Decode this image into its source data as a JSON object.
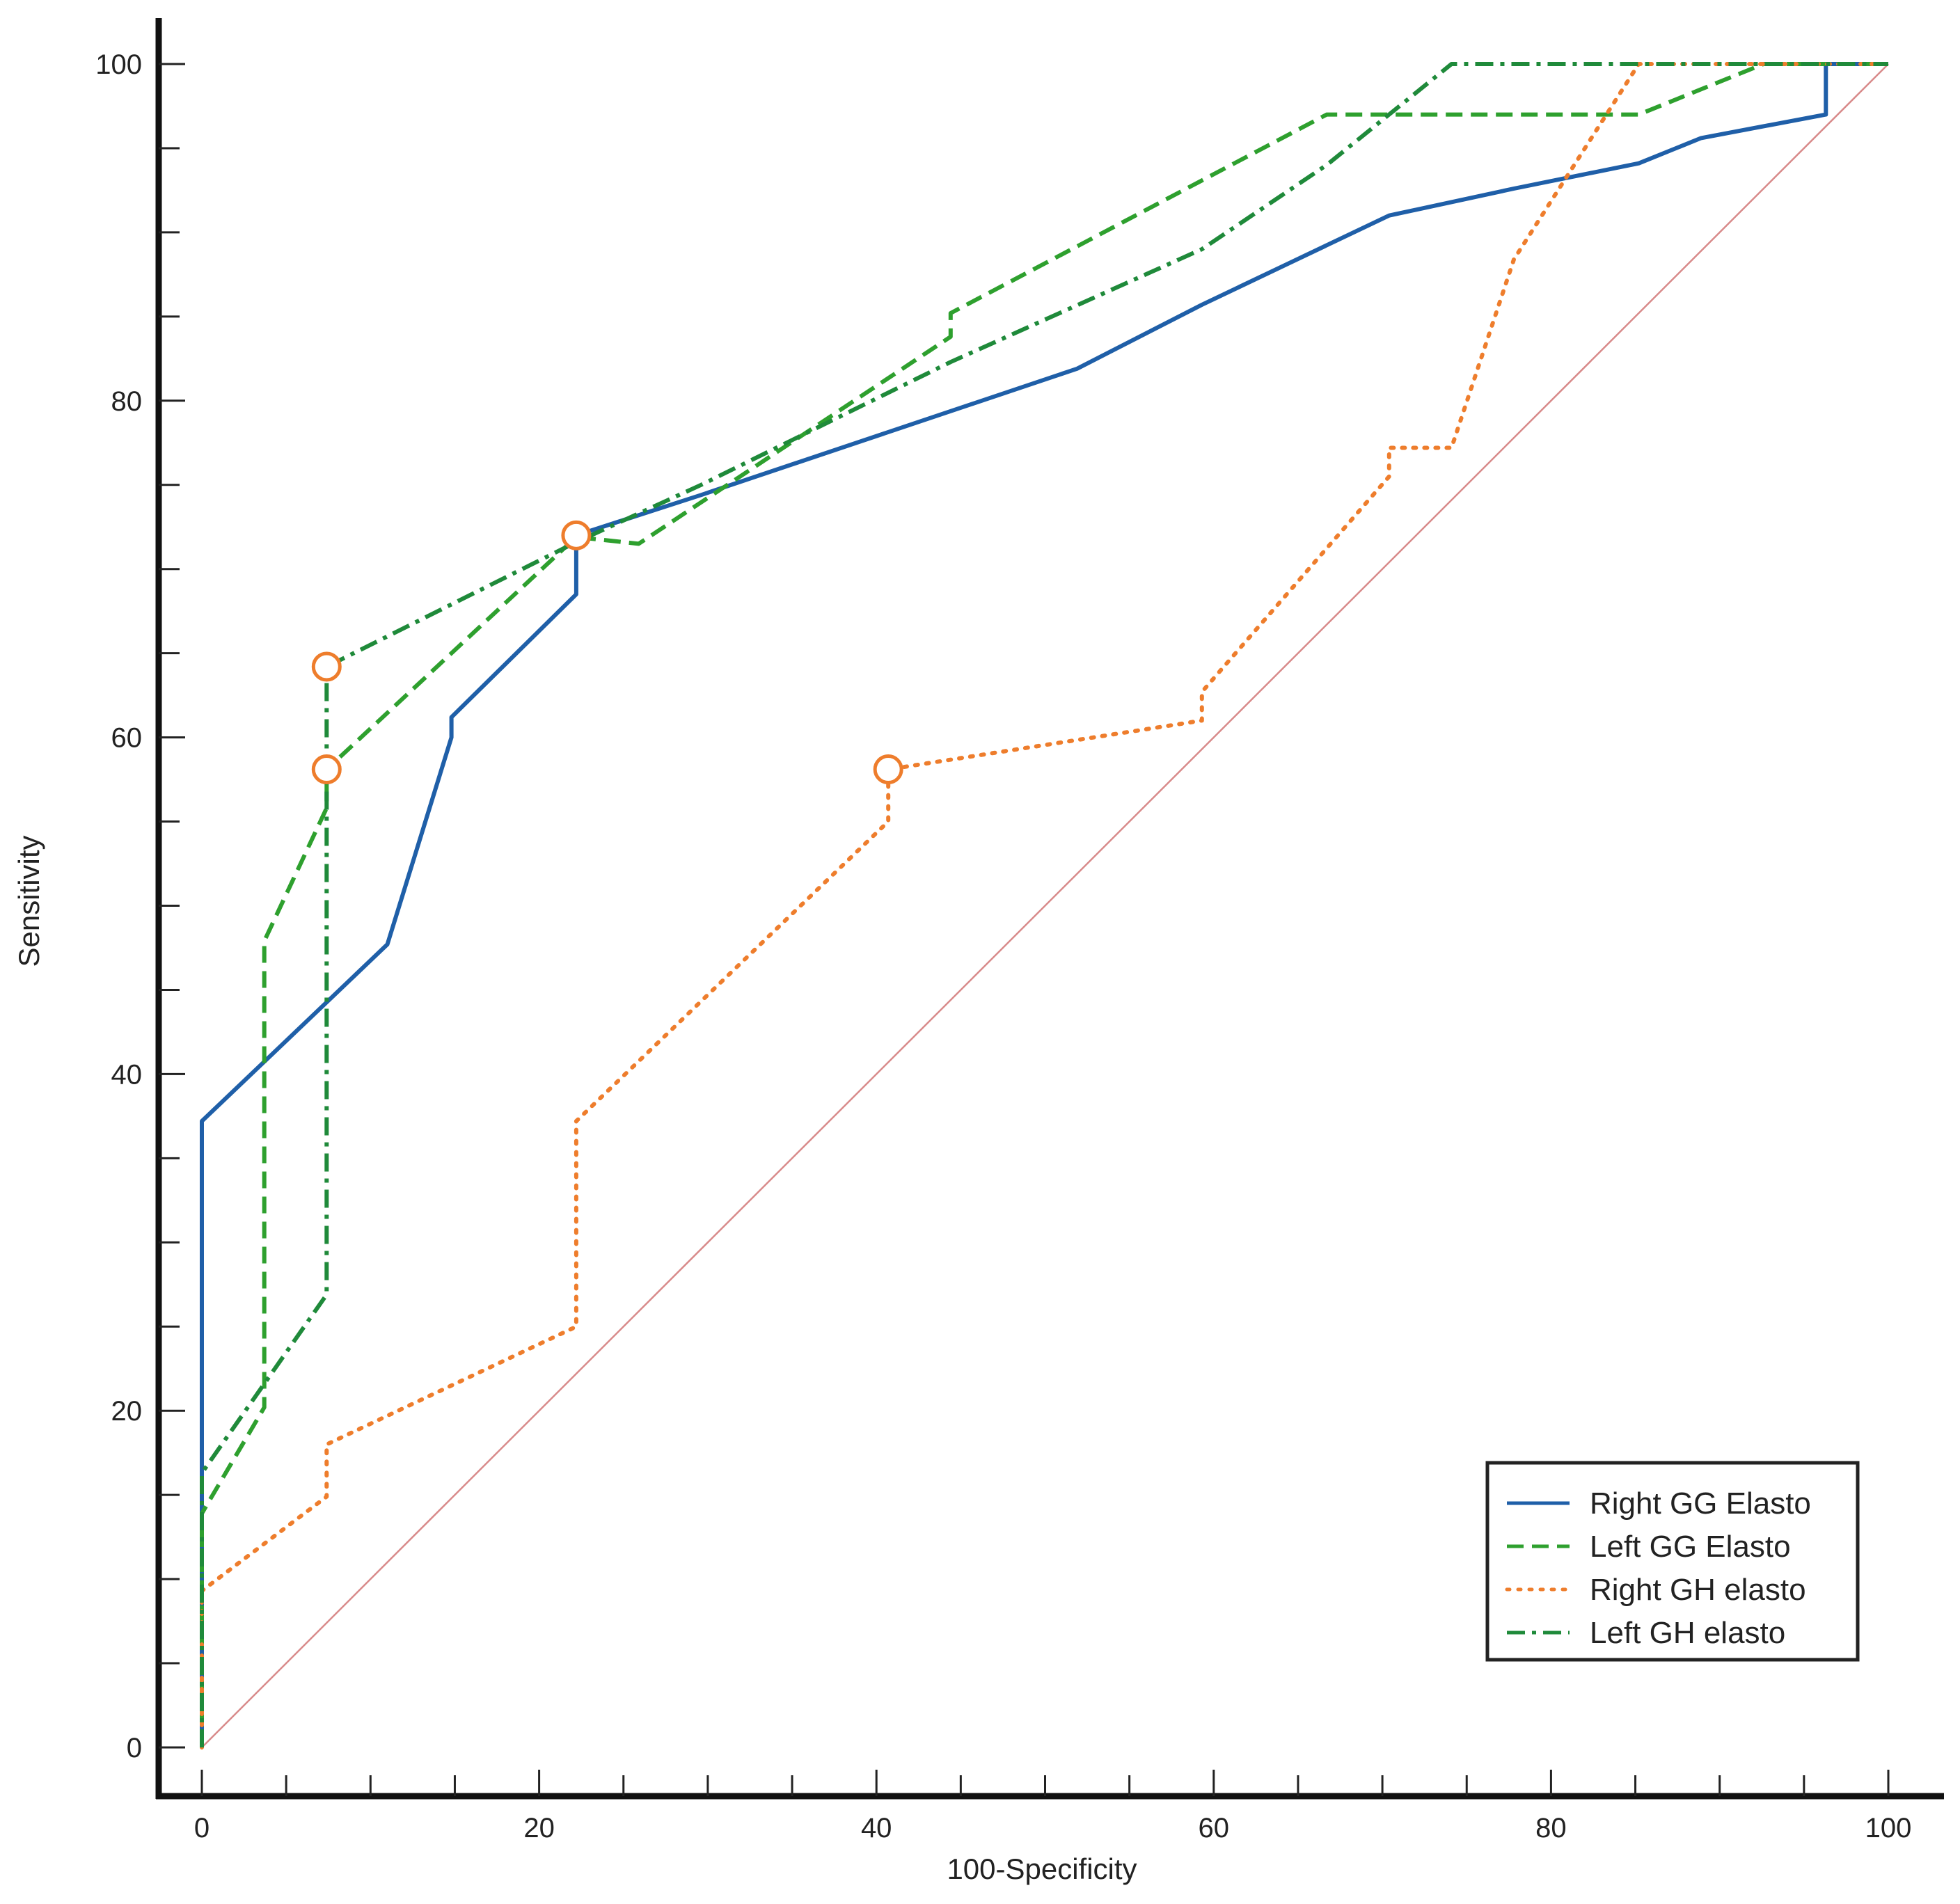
{
  "chart_data": {
    "type": "line",
    "title": "",
    "xlabel": "100-Specificity",
    "ylabel": "Sensitivity",
    "xlim": [
      0,
      100
    ],
    "ylim": [
      0,
      100
    ],
    "x_ticks": [
      0,
      20,
      40,
      60,
      80,
      100
    ],
    "y_ticks": [
      0,
      20,
      40,
      60,
      80,
      100
    ],
    "grid": false,
    "legend_position": "bottom-right",
    "reference_line": {
      "from": [
        0,
        0
      ],
      "to": [
        100,
        100
      ],
      "color": "#d88a8a"
    },
    "series": [
      {
        "name": "Right GG Elasto",
        "color": "#1f5fa8",
        "dash": "solid",
        "points": [
          [
            0,
            0
          ],
          [
            0,
            37.2
          ],
          [
            11,
            47.7
          ],
          [
            14.8,
            60
          ],
          [
            14.8,
            61.2
          ],
          [
            22.2,
            68.5
          ],
          [
            22.2,
            72
          ],
          [
            29.6,
            74.4
          ],
          [
            51.9,
            81.9
          ],
          [
            59.3,
            85.7
          ],
          [
            70.4,
            91
          ],
          [
            77.8,
            92.6
          ],
          [
            85.2,
            94.1
          ],
          [
            88.9,
            95.6
          ],
          [
            96.3,
            97
          ],
          [
            96.3,
            100
          ],
          [
            100,
            100
          ]
        ]
      },
      {
        "name": "Left GG Elasto",
        "color": "#2ea02e",
        "dash": "dashed",
        "points": [
          [
            0,
            0
          ],
          [
            0,
            13.9
          ],
          [
            3.7,
            20.2
          ],
          [
            3.7,
            47.9
          ],
          [
            7.4,
            55.8
          ],
          [
            7.4,
            58.1
          ],
          [
            22.2,
            71.9
          ],
          [
            25.9,
            71.5
          ],
          [
            44.4,
            83.8
          ],
          [
            44.4,
            85.2
          ],
          [
            66.7,
            97
          ],
          [
            85.2,
            97
          ],
          [
            92.6,
            100
          ],
          [
            100,
            100
          ]
        ]
      },
      {
        "name": "Right GH elasto",
        "color": "#ee7d2c",
        "dash": "dotted",
        "points": [
          [
            0,
            0
          ],
          [
            0,
            9.3
          ],
          [
            7.4,
            14.9
          ],
          [
            7.4,
            18
          ],
          [
            22.2,
            25
          ],
          [
            22.2,
            37.2
          ],
          [
            40.7,
            55
          ],
          [
            40.7,
            58.1
          ],
          [
            59.3,
            61
          ],
          [
            59.3,
            62.7
          ],
          [
            70.4,
            75.5
          ],
          [
            70.4,
            77.2
          ],
          [
            74.1,
            77.2
          ],
          [
            77.8,
            88.4
          ],
          [
            85.2,
            100
          ],
          [
            100,
            100
          ]
        ]
      },
      {
        "name": "Left GH elasto",
        "color": "#1f8a3a",
        "dash": "dashdot",
        "points": [
          [
            0,
            0
          ],
          [
            0,
            16.3
          ],
          [
            7.4,
            26.9
          ],
          [
            7.4,
            64.2
          ],
          [
            22.2,
            71.6
          ],
          [
            29.6,
            75
          ],
          [
            44.4,
            82.3
          ],
          [
            59.3,
            89
          ],
          [
            66.7,
            94
          ],
          [
            74.1,
            100
          ],
          [
            100,
            100
          ]
        ]
      }
    ],
    "markers": [
      {
        "series": "Right GG Elasto",
        "x": 22.2,
        "y": 72
      },
      {
        "series": "Left GG Elasto",
        "x": 7.4,
        "y": 58.1
      },
      {
        "series": "Right GH elasto",
        "x": 40.7,
        "y": 58.1
      },
      {
        "series": "Left GH elasto",
        "x": 7.4,
        "y": 64.2
      }
    ],
    "marker_color": "#ee7d2c"
  }
}
